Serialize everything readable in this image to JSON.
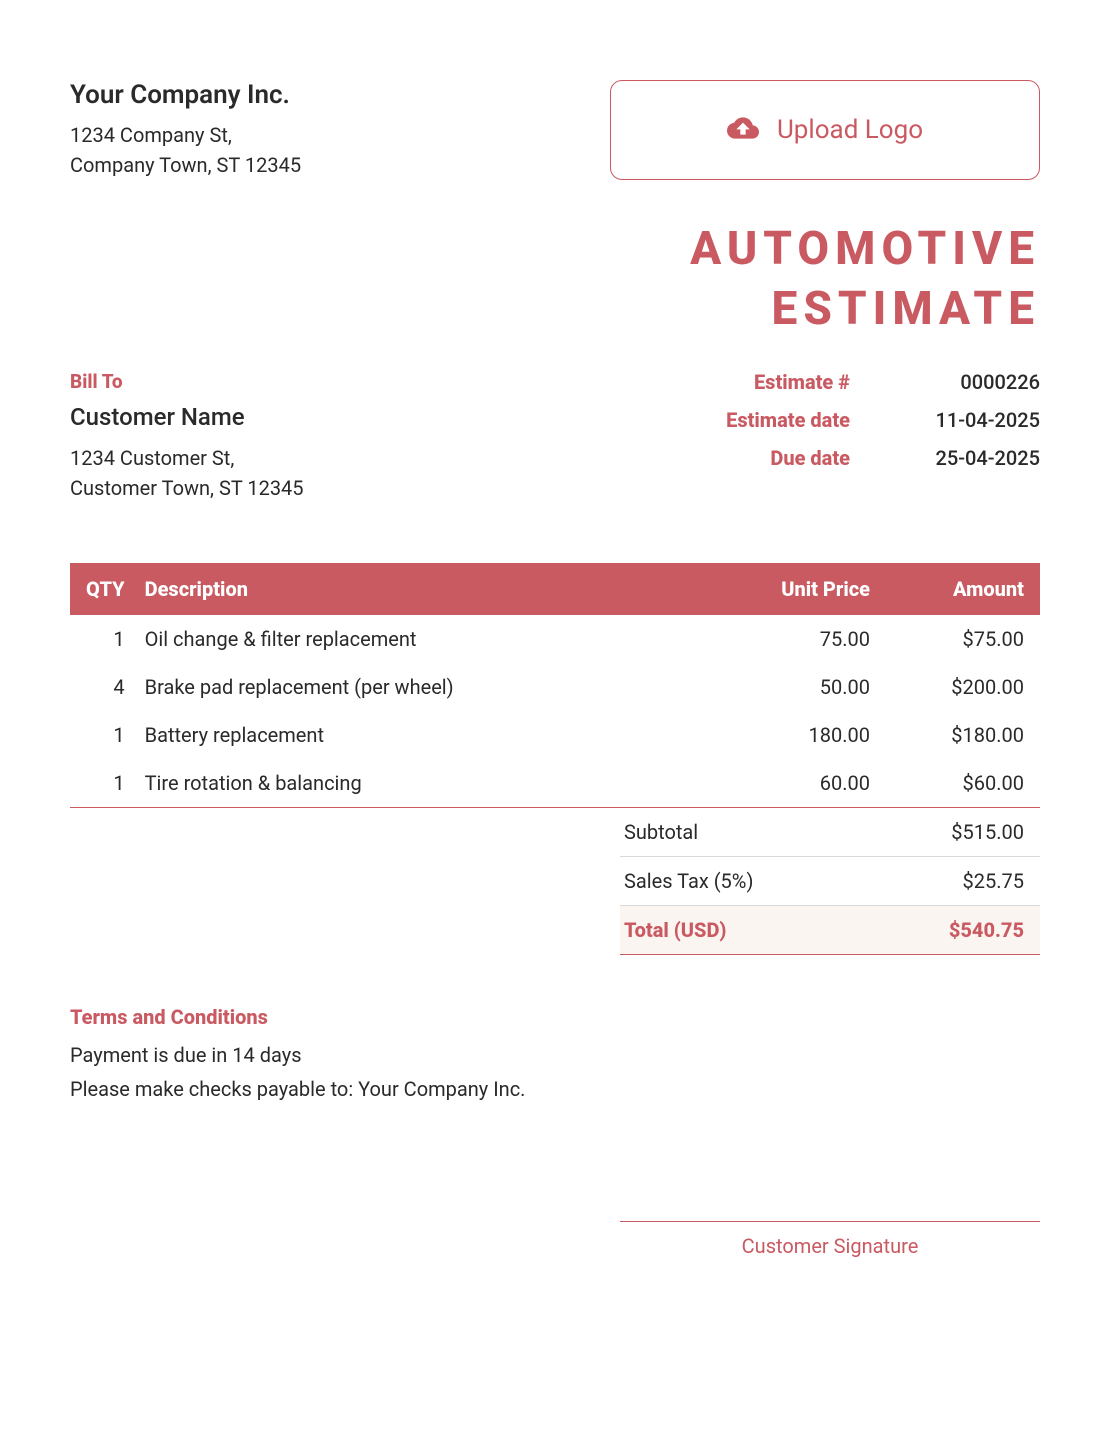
{
  "colors": {
    "accent": "#c95a62",
    "text": "#2a2a2a",
    "bg": "#ffffff",
    "total_bg": "#fbf5f2",
    "divider": "#d9d9d9"
  },
  "company": {
    "name": "Your Company Inc.",
    "addr1": "1234 Company St,",
    "addr2": "Company Town, ST 12345"
  },
  "upload": {
    "label": "Upload Logo"
  },
  "doc_title_line1": "AUTOMOTIVE",
  "doc_title_line2": "ESTIMATE",
  "bill_to": {
    "heading": "Bill To",
    "name": "Customer Name",
    "addr1": "1234 Customer St,",
    "addr2": "Customer Town, ST 12345"
  },
  "meta": {
    "estimate_no_label": "Estimate #",
    "estimate_no": "0000226",
    "estimate_date_label": "Estimate date",
    "estimate_date": "11-04-2025",
    "due_date_label": "Due date",
    "due_date": "25-04-2025"
  },
  "table": {
    "headers": {
      "qty": "QTY",
      "desc": "Description",
      "unit": "Unit Price",
      "amount": "Amount"
    },
    "rows": [
      {
        "qty": "1",
        "desc": "Oil change & filter replacement",
        "unit": "75.00",
        "amount": "$75.00"
      },
      {
        "qty": "4",
        "desc": "Brake pad replacement (per wheel)",
        "unit": "50.00",
        "amount": "$200.00"
      },
      {
        "qty": "1",
        "desc": "Battery replacement",
        "unit": "180.00",
        "amount": "$180.00"
      },
      {
        "qty": "1",
        "desc": "Tire rotation & balancing",
        "unit": "60.00",
        "amount": "$60.00"
      }
    ]
  },
  "totals": {
    "subtotal_label": "Subtotal",
    "subtotal": "$515.00",
    "tax_label": "Sales Tax (5%)",
    "tax": "$25.75",
    "grand_label": "Total (USD)",
    "grand": "$540.75"
  },
  "terms": {
    "heading": "Terms and Conditions",
    "line1": "Payment is due in 14 days",
    "line2": "Please make checks payable to: Your Company Inc."
  },
  "signature": {
    "label": "Customer Signature"
  }
}
